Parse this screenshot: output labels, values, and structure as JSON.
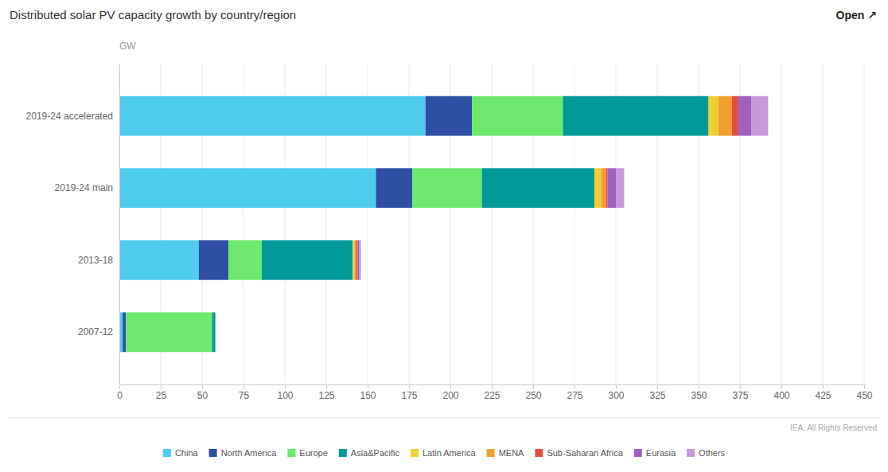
{
  "chart_data": {
    "type": "bar",
    "orientation": "horizontal",
    "stacked": true,
    "title": "Distributed solar PV capacity growth by country/region",
    "xlabel": "GW",
    "annotations": [
      "Open ↗",
      "IEA. All Rights Reserved"
    ],
    "categories": [
      "2007-12",
      "2013-18",
      "2019-24 main",
      "2019-24 accelerated"
    ],
    "series": [
      {
        "name": "China",
        "color": "#4DCCEE",
        "values": [
          2,
          48,
          155,
          185
        ]
      },
      {
        "name": "North America",
        "color": "#2E4FA3",
        "values": [
          2,
          18,
          22,
          28
        ]
      },
      {
        "name": "Europe",
        "color": "#6EE86E",
        "values": [
          52,
          20,
          42,
          55
        ]
      },
      {
        "name": "Asia&Pacific",
        "color": "#009999",
        "values": [
          2,
          55,
          68,
          88
        ]
      },
      {
        "name": "Latin America",
        "color": "#F0D030",
        "values": [
          0,
          1,
          4,
          6
        ]
      },
      {
        "name": "MENA",
        "color": "#F0A030",
        "values": [
          0,
          1,
          3,
          8
        ]
      },
      {
        "name": "Sub-Saharan Africa",
        "color": "#E05040",
        "values": [
          0,
          1,
          1,
          4
        ]
      },
      {
        "name": "Eurasia",
        "color": "#A060C0",
        "values": [
          0,
          1,
          5,
          8
        ]
      },
      {
        "name": "Others",
        "color": "#C898D8",
        "values": [
          0,
          1,
          5,
          10
        ]
      }
    ],
    "xlim": [
      0,
      450
    ],
    "xticks": [
      0,
      25,
      50,
      75,
      100,
      125,
      150,
      175,
      200,
      225,
      250,
      275,
      300,
      325,
      350,
      375,
      400,
      425,
      450
    ],
    "grid": true,
    "legend": "bottom"
  }
}
